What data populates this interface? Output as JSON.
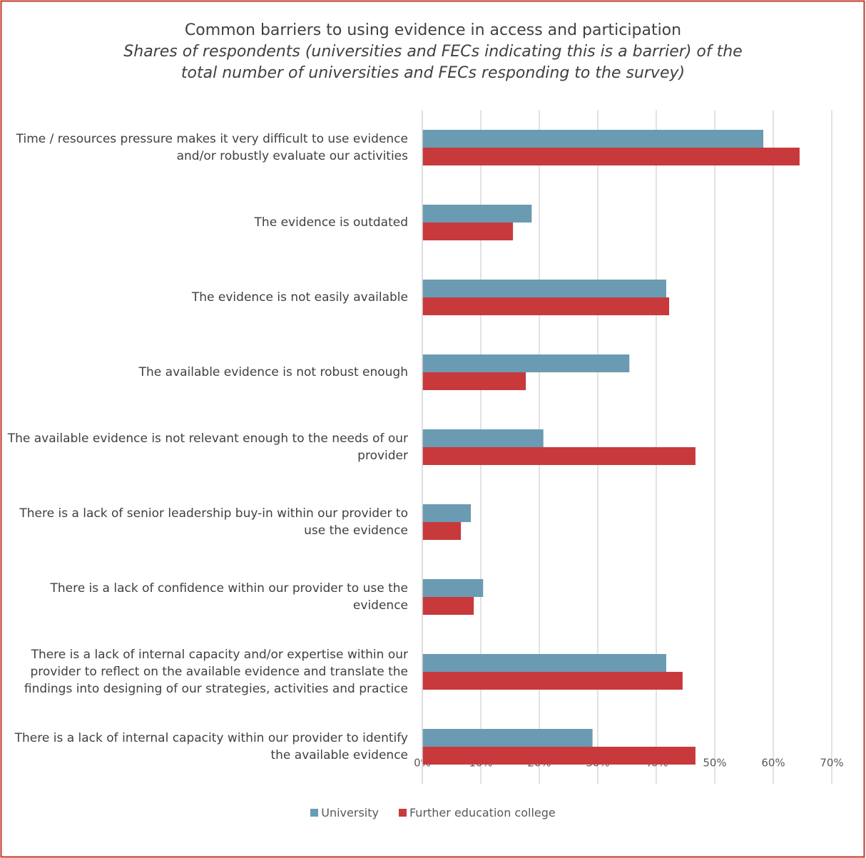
{
  "chart_data": {
    "type": "barh",
    "title": "Common barriers to using evidence in access and participation",
    "subtitle": "Shares of respondents (universities and FECs indicating this is a barrier) of the total number of universities and FECs responding to the survey)",
    "categories": [
      "Time / resources pressure makes it very difficult to use evidence and/or robustly evaluate our activities",
      "The evidence is outdated",
      "The evidence is not easily available",
      "The available evidence is not robust enough",
      "The available evidence is not relevant enough to the needs of our provider",
      "There is a lack of senior leadership buy-in within our provider to use the evidence",
      "There is a lack of confidence within our provider to use the evidence",
      "There is a lack of internal capacity and/or expertise within our provider to reflect on the available evidence and translate the findings into designing of our strategies, activities and practice",
      "There is a lack of internal capacity within our provider to identify the available evidence"
    ],
    "series": [
      {
        "name": "University",
        "color": "#6a9bb3",
        "values": [
          58.3,
          18.7,
          41.7,
          35.4,
          20.7,
          8.3,
          10.4,
          41.7,
          29.1
        ]
      },
      {
        "name": "Further education college",
        "color": "#c8393c",
        "values": [
          64.5,
          15.5,
          42.2,
          17.7,
          46.7,
          6.6,
          8.8,
          44.5,
          46.7
        ]
      }
    ],
    "xlim": [
      0,
      70
    ],
    "xticks": [
      {
        "value": 0,
        "label": "0%"
      },
      {
        "value": 10,
        "label": "10%"
      },
      {
        "value": 20,
        "label": "20%"
      },
      {
        "value": 30,
        "label": "30%"
      },
      {
        "value": 40,
        "label": "40%"
      },
      {
        "value": 50,
        "label": "50%"
      },
      {
        "value": 60,
        "label": "60%"
      },
      {
        "value": 70,
        "label": "70%"
      }
    ],
    "grid": true,
    "legend": "bottom"
  }
}
